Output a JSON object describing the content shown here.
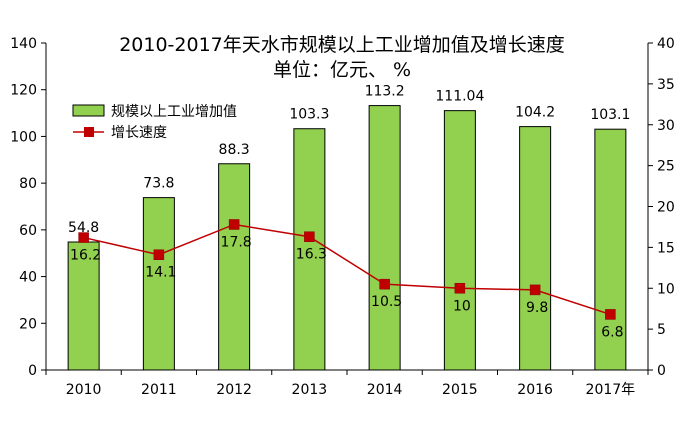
{
  "chart_data": {
    "type": "bar",
    "title": "2010-2017年天水市规模以上工业增加值及增长速度",
    "subtitle": "单位：亿元、 %",
    "categories": [
      "2010",
      "2011",
      "2012",
      "2013",
      "2014",
      "2015",
      "2016",
      "2017年"
    ],
    "series": [
      {
        "name": "规模以上工业增加值",
        "type": "bar",
        "axis": "left",
        "color": "#92d050",
        "values": [
          54.8,
          73.8,
          88.3,
          103.3,
          113.2,
          111.04,
          104.2,
          103.1
        ],
        "labels": [
          "54.8",
          "73.8",
          "88.3",
          "103.3",
          "113.2",
          "111.04",
          "104.2",
          "103.1"
        ]
      },
      {
        "name": "增长速度",
        "type": "line",
        "axis": "right",
        "color": "#c00000",
        "values": [
          16.2,
          14.1,
          17.8,
          16.3,
          10.5,
          10,
          9.8,
          6.8
        ],
        "labels": [
          "16.2",
          "14.1",
          "17.8",
          "16.3",
          "10.5",
          "10",
          "9.8",
          "6.8"
        ]
      }
    ],
    "y_left": {
      "min": 0,
      "max": 140,
      "ticks": [
        "0",
        "20",
        "40",
        "60",
        "80",
        "100",
        "120",
        "140"
      ]
    },
    "y_right": {
      "min": 0,
      "max": 40,
      "ticks": [
        "0",
        "5",
        "10",
        "15",
        "20",
        "25",
        "30",
        "35",
        "40"
      ]
    },
    "grid": false,
    "legend_position": "top-left"
  }
}
